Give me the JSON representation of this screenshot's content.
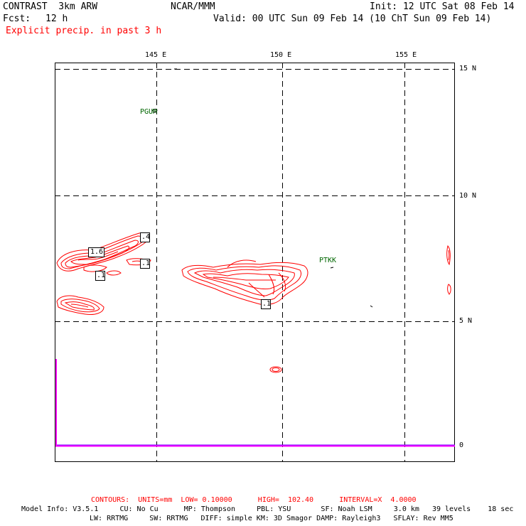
{
  "header": {
    "model": "CONTRAST  3km ARW",
    "org": "NCAR/MMM",
    "init": "Init: 12 UTC Sat 08 Feb 14",
    "fcst_label": "Fcst:",
    "fcst_value": "12 h",
    "valid": "Valid: 00 UTC Sun 09 Feb 14 (10 ChT Sun 09 Feb 14)",
    "field": "Explicit precip. in past 3 h"
  },
  "axes": {
    "lon_labels": [
      "145 E",
      "150 E",
      "155 E"
    ],
    "lat_labels": [
      "15 N",
      "10 N",
      "5 N",
      "0"
    ]
  },
  "stations": [
    {
      "id": "PGUM"
    },
    {
      "id": "PTKK"
    }
  ],
  "contour_labels": [
    ".4",
    "1.6",
    ".1",
    ".1",
    ".1"
  ],
  "colors": {
    "contour": "#ff0000",
    "station": "#006600",
    "boundary": "#ff00ff"
  },
  "footer": {
    "contours": "CONTOURS:  UNITS=mm  LOW= 0.10000      HIGH=  102.40      INTERVAL=X  4.0000",
    "line1": "Model Info: V3.5.1     CU: No Cu      MP: Thompson     PBL: YSU       SF: Noah LSM     3.0 km   39 levels    18 sec",
    "line2": "LW: RRTMG     SW: RRTMG   DIFF: simple KM: 3D Smagor DAMP: Rayleigh3   SFLAY: Rev MM5"
  }
}
